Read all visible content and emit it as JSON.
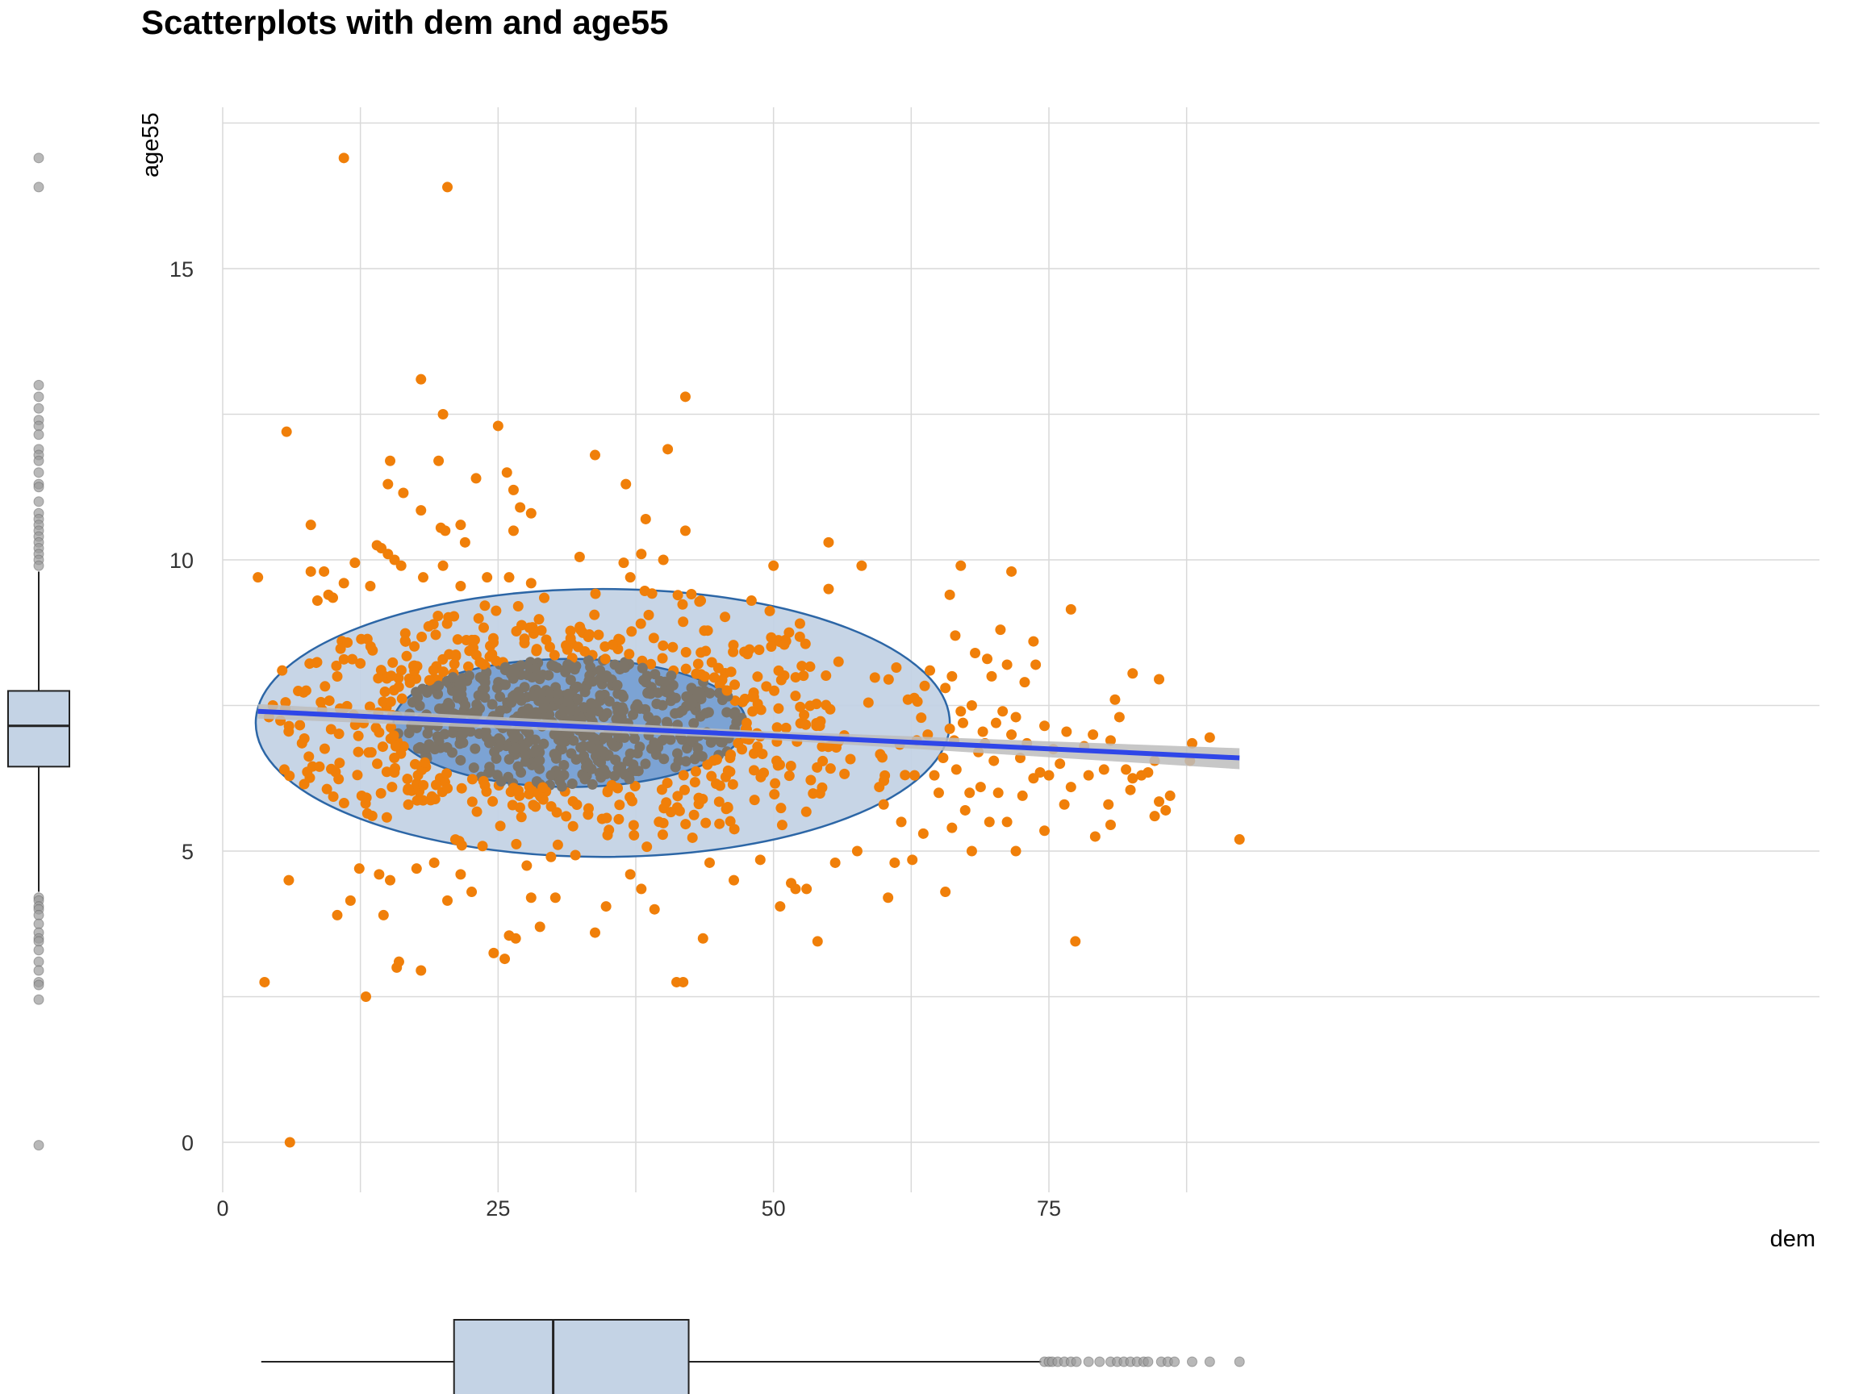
{
  "title": "Scatterplots with dem and age55",
  "colors": {
    "points": "#f07f09",
    "points_inner": "#7c7468",
    "regression": "#2f46e8",
    "ci_band": "#bdbdbd",
    "ellipse_fill_outer": "#c4d3e5",
    "ellipse_fill_inner": "#6f9ad0",
    "ellipse_stroke": "#2c66a6",
    "grid": "#d9d9d9",
    "box_fill": "#c4d3e5",
    "box_stroke": "#222222",
    "outlier": "#9a9a9a"
  },
  "chart_data": {
    "type": "scatter",
    "title": "Scatterplots with dem and age55",
    "xlabel": "dem",
    "ylabel": "age55",
    "xlim": [
      0,
      97
    ],
    "ylim": [
      -1.5,
      17.5
    ],
    "x_ticks": [
      0,
      25,
      50,
      75
    ],
    "x_tick_labels": [
      "0",
      "25",
      "50",
      "75"
    ],
    "y_ticks": [
      0,
      5,
      10,
      15
    ],
    "y_tick_labels": [
      "0",
      "5",
      "10",
      "15"
    ],
    "grid": true,
    "regression_line": {
      "x": [
        3.2,
        92.3
      ],
      "y": [
        7.4,
        6.6
      ]
    },
    "ellipses": [
      {
        "cx": 34.5,
        "cy": 7.2,
        "rx": 31.5,
        "ry": 2.3,
        "level": "outer"
      },
      {
        "cx": 31.5,
        "cy": 7.2,
        "rx": 16.0,
        "ry": 1.1,
        "level": "inner"
      }
    ],
    "outlier_points": [
      {
        "x": 11.0,
        "y": 16.9
      },
      {
        "x": 20.4,
        "y": 16.4
      },
      {
        "x": 42.0,
        "y": 12.8
      },
      {
        "x": 18.0,
        "y": 13.1
      },
      {
        "x": 20.0,
        "y": 12.5
      },
      {
        "x": 25.0,
        "y": 12.3
      },
      {
        "x": 5.8,
        "y": 12.2
      },
      {
        "x": 40.4,
        "y": 11.9
      },
      {
        "x": 33.8,
        "y": 11.8
      },
      {
        "x": 19.6,
        "y": 11.7
      },
      {
        "x": 15.2,
        "y": 11.7
      },
      {
        "x": 25.8,
        "y": 11.5
      },
      {
        "x": 23.0,
        "y": 11.4
      },
      {
        "x": 36.6,
        "y": 11.3
      },
      {
        "x": 15.0,
        "y": 11.3
      },
      {
        "x": 26.4,
        "y": 11.2
      },
      {
        "x": 16.4,
        "y": 11.15
      },
      {
        "x": 27.0,
        "y": 10.9
      },
      {
        "x": 28.0,
        "y": 10.8
      },
      {
        "x": 18.0,
        "y": 10.85
      },
      {
        "x": 38.4,
        "y": 10.7
      },
      {
        "x": 21.6,
        "y": 10.6
      },
      {
        "x": 8.0,
        "y": 10.6
      },
      {
        "x": 26.4,
        "y": 10.5
      },
      {
        "x": 19.8,
        "y": 10.55
      },
      {
        "x": 20.2,
        "y": 10.5
      },
      {
        "x": 42.0,
        "y": 10.5
      },
      {
        "x": 55.0,
        "y": 10.3
      },
      {
        "x": 22.0,
        "y": 10.3
      },
      {
        "x": 14.0,
        "y": 10.25
      },
      {
        "x": 14.4,
        "y": 10.2
      },
      {
        "x": 15.0,
        "y": 10.1
      },
      {
        "x": 38.0,
        "y": 10.1
      },
      {
        "x": 15.6,
        "y": 10.0
      },
      {
        "x": 32.4,
        "y": 10.05
      },
      {
        "x": 40.0,
        "y": 10.0
      },
      {
        "x": 50.0,
        "y": 9.9
      },
      {
        "x": 58.0,
        "y": 9.9
      },
      {
        "x": 67.0,
        "y": 9.9
      },
      {
        "x": 12.0,
        "y": 9.95
      },
      {
        "x": 16.2,
        "y": 9.9
      },
      {
        "x": 36.4,
        "y": 9.95
      },
      {
        "x": 20.0,
        "y": 9.9
      },
      {
        "x": 9.2,
        "y": 9.8
      },
      {
        "x": 8.0,
        "y": 9.8
      },
      {
        "x": 71.6,
        "y": 9.8
      },
      {
        "x": 3.2,
        "y": 9.7
      },
      {
        "x": 24.0,
        "y": 9.7
      },
      {
        "x": 37.0,
        "y": 9.7
      },
      {
        "x": 26.0,
        "y": 9.7
      },
      {
        "x": 18.2,
        "y": 9.7
      },
      {
        "x": 11.0,
        "y": 9.6
      },
      {
        "x": 13.4,
        "y": 9.55
      },
      {
        "x": 21.6,
        "y": 9.55
      },
      {
        "x": 28.0,
        "y": 9.6
      },
      {
        "x": 55.0,
        "y": 9.5
      },
      {
        "x": 66.0,
        "y": 9.4
      },
      {
        "x": 9.6,
        "y": 9.4
      },
      {
        "x": 10.0,
        "y": 9.35
      },
      {
        "x": 43.4,
        "y": 9.3
      },
      {
        "x": 8.6,
        "y": 9.3
      },
      {
        "x": 77.0,
        "y": 9.15
      },
      {
        "x": 48.0,
        "y": 9.3
      },
      {
        "x": 5.4,
        "y": 8.1
      },
      {
        "x": 5.6,
        "y": 6.4
      },
      {
        "x": 7.4,
        "y": 6.15
      },
      {
        "x": 4.2,
        "y": 7.3
      },
      {
        "x": 6.0,
        "y": 4.5
      },
      {
        "x": 3.8,
        "y": 2.75
      },
      {
        "x": 6.1,
        "y": 0.0
      },
      {
        "x": 10.4,
        "y": 3.9
      },
      {
        "x": 11.6,
        "y": 4.15
      },
      {
        "x": 12.4,
        "y": 4.7
      },
      {
        "x": 13.0,
        "y": 2.5
      },
      {
        "x": 14.2,
        "y": 4.6
      },
      {
        "x": 14.6,
        "y": 3.9
      },
      {
        "x": 15.2,
        "y": 4.5
      },
      {
        "x": 15.8,
        "y": 3.0
      },
      {
        "x": 16.0,
        "y": 3.1
      },
      {
        "x": 17.6,
        "y": 4.7
      },
      {
        "x": 18.0,
        "y": 2.95
      },
      {
        "x": 19.2,
        "y": 4.8
      },
      {
        "x": 20.4,
        "y": 4.15
      },
      {
        "x": 21.6,
        "y": 4.6
      },
      {
        "x": 22.6,
        "y": 4.3
      },
      {
        "x": 24.6,
        "y": 3.25
      },
      {
        "x": 25.6,
        "y": 3.15
      },
      {
        "x": 26.0,
        "y": 3.55
      },
      {
        "x": 26.6,
        "y": 3.5
      },
      {
        "x": 27.6,
        "y": 4.75
      },
      {
        "x": 28.0,
        "y": 4.2
      },
      {
        "x": 28.8,
        "y": 3.7
      },
      {
        "x": 29.8,
        "y": 4.9
      },
      {
        "x": 30.2,
        "y": 4.2
      },
      {
        "x": 33.8,
        "y": 3.6
      },
      {
        "x": 34.8,
        "y": 4.05
      },
      {
        "x": 37.0,
        "y": 4.6
      },
      {
        "x": 38.0,
        "y": 4.35
      },
      {
        "x": 39.2,
        "y": 4.0
      },
      {
        "x": 41.2,
        "y": 2.75
      },
      {
        "x": 41.8,
        "y": 2.75
      },
      {
        "x": 43.6,
        "y": 3.5
      },
      {
        "x": 44.2,
        "y": 4.8
      },
      {
        "x": 46.4,
        "y": 4.5
      },
      {
        "x": 48.8,
        "y": 4.85
      },
      {
        "x": 50.6,
        "y": 4.05
      },
      {
        "x": 51.6,
        "y": 4.45
      },
      {
        "x": 52.0,
        "y": 4.35
      },
      {
        "x": 53.0,
        "y": 4.35
      },
      {
        "x": 54.0,
        "y": 3.45
      },
      {
        "x": 55.6,
        "y": 4.8
      },
      {
        "x": 57.6,
        "y": 5.0
      },
      {
        "x": 60.4,
        "y": 4.2
      },
      {
        "x": 61.0,
        "y": 4.8
      },
      {
        "x": 62.6,
        "y": 4.85
      },
      {
        "x": 65.6,
        "y": 4.3
      },
      {
        "x": 77.4,
        "y": 3.45
      },
      {
        "x": 66.5,
        "y": 8.7
      },
      {
        "x": 68.3,
        "y": 8.4
      },
      {
        "x": 70.6,
        "y": 8.8
      },
      {
        "x": 71.2,
        "y": 8.2
      },
      {
        "x": 72.8,
        "y": 7.9
      },
      {
        "x": 73.6,
        "y": 8.6
      },
      {
        "x": 73.8,
        "y": 8.2
      },
      {
        "x": 69.4,
        "y": 8.3
      },
      {
        "x": 69.8,
        "y": 8.0
      },
      {
        "x": 66.2,
        "y": 8.0
      },
      {
        "x": 64.2,
        "y": 8.1
      },
      {
        "x": 65.6,
        "y": 7.8
      },
      {
        "x": 68.0,
        "y": 7.5
      },
      {
        "x": 70.8,
        "y": 7.4
      },
      {
        "x": 72.0,
        "y": 7.3
      },
      {
        "x": 67.2,
        "y": 7.2
      },
      {
        "x": 66.4,
        "y": 6.9
      },
      {
        "x": 69.2,
        "y": 6.85
      },
      {
        "x": 71.6,
        "y": 7.0
      },
      {
        "x": 74.6,
        "y": 7.15
      },
      {
        "x": 76.6,
        "y": 7.05
      },
      {
        "x": 78.2,
        "y": 6.8
      },
      {
        "x": 79.0,
        "y": 7.0
      },
      {
        "x": 80.6,
        "y": 6.9
      },
      {
        "x": 81.0,
        "y": 7.6
      },
      {
        "x": 81.4,
        "y": 7.3
      },
      {
        "x": 82.6,
        "y": 8.05
      },
      {
        "x": 85.0,
        "y": 7.95
      },
      {
        "x": 84.0,
        "y": 6.35
      },
      {
        "x": 82.0,
        "y": 6.4
      },
      {
        "x": 82.6,
        "y": 6.25
      },
      {
        "x": 83.4,
        "y": 6.3
      },
      {
        "x": 84.6,
        "y": 6.55
      },
      {
        "x": 87.8,
        "y": 6.55
      },
      {
        "x": 88.0,
        "y": 6.85
      },
      {
        "x": 89.6,
        "y": 6.95
      },
      {
        "x": 92.3,
        "y": 5.2
      },
      {
        "x": 85.0,
        "y": 5.85
      },
      {
        "x": 85.6,
        "y": 5.7
      },
      {
        "x": 86.0,
        "y": 5.95
      },
      {
        "x": 84.6,
        "y": 5.6
      },
      {
        "x": 82.4,
        "y": 6.05
      },
      {
        "x": 80.4,
        "y": 5.8
      },
      {
        "x": 80.0,
        "y": 6.4
      },
      {
        "x": 79.2,
        "y": 5.25
      },
      {
        "x": 80.6,
        "y": 5.45
      },
      {
        "x": 77.0,
        "y": 6.1
      },
      {
        "x": 76.4,
        "y": 5.8
      },
      {
        "x": 75.0,
        "y": 6.3
      },
      {
        "x": 74.6,
        "y": 5.35
      },
      {
        "x": 73.6,
        "y": 6.25
      },
      {
        "x": 72.6,
        "y": 5.95
      },
      {
        "x": 72.0,
        "y": 5.0
      },
      {
        "x": 71.2,
        "y": 5.5
      },
      {
        "x": 70.4,
        "y": 6.0
      },
      {
        "x": 69.6,
        "y": 5.5
      },
      {
        "x": 68.0,
        "y": 5.0
      },
      {
        "x": 67.4,
        "y": 5.7
      },
      {
        "x": 66.2,
        "y": 5.4
      },
      {
        "x": 65.0,
        "y": 6.0
      },
      {
        "x": 63.6,
        "y": 5.3
      },
      {
        "x": 62.8,
        "y": 6.3
      },
      {
        "x": 61.6,
        "y": 5.5
      },
      {
        "x": 60.0,
        "y": 5.8
      },
      {
        "x": 59.6,
        "y": 6.1
      },
      {
        "x": 64.6,
        "y": 6.3
      },
      {
        "x": 65.4,
        "y": 6.6
      },
      {
        "x": 66.6,
        "y": 6.4
      },
      {
        "x": 67.8,
        "y": 6.0
      },
      {
        "x": 68.8,
        "y": 6.1
      },
      {
        "x": 70.0,
        "y": 6.55
      },
      {
        "x": 72.4,
        "y": 6.6
      },
      {
        "x": 73.0,
        "y": 6.85
      },
      {
        "x": 74.2,
        "y": 6.35
      },
      {
        "x": 75.4,
        "y": 6.75
      },
      {
        "x": 76.0,
        "y": 6.5
      },
      {
        "x": 78.6,
        "y": 6.3
      },
      {
        "x": 68.6,
        "y": 6.7
      },
      {
        "x": 69.0,
        "y": 7.05
      },
      {
        "x": 70.2,
        "y": 7.2
      },
      {
        "x": 66.0,
        "y": 7.1
      },
      {
        "x": 67.0,
        "y": 7.4
      },
      {
        "x": 62.2,
        "y": 7.6
      },
      {
        "x": 63.0,
        "y": 6.9
      },
      {
        "x": 64.0,
        "y": 7.0
      }
    ],
    "box_x": {
      "min": 3.5,
      "q1": 21.0,
      "median": 30.0,
      "q3": 42.3,
      "whisker_high": 74.3,
      "outliers": [
        74.6,
        75.0,
        75.3,
        75.8,
        76.4,
        77.0,
        77.5,
        78.6,
        79.6,
        80.6,
        81.2,
        81.8,
        82.4,
        83.0,
        83.6,
        84.0,
        85.2,
        85.8,
        86.4,
        88.0,
        89.6,
        92.3
      ]
    },
    "box_y": {
      "whisker_low": 4.3,
      "q1": 6.45,
      "median": 7.15,
      "q3": 7.75,
      "whisker_high": 9.8,
      "outliers": [
        16.9,
        16.4,
        13.0,
        12.8,
        12.6,
        12.4,
        12.3,
        12.15,
        11.9,
        11.8,
        11.7,
        11.5,
        11.3,
        11.25,
        11.0,
        10.8,
        10.7,
        10.6,
        10.5,
        10.4,
        10.3,
        10.2,
        10.1,
        10.0,
        9.9,
        4.2,
        4.15,
        4.05,
        4.0,
        3.9,
        3.75,
        3.6,
        3.5,
        3.45,
        3.3,
        3.1,
        2.95,
        2.75,
        2.7,
        2.45,
        -0.05
      ]
    }
  }
}
